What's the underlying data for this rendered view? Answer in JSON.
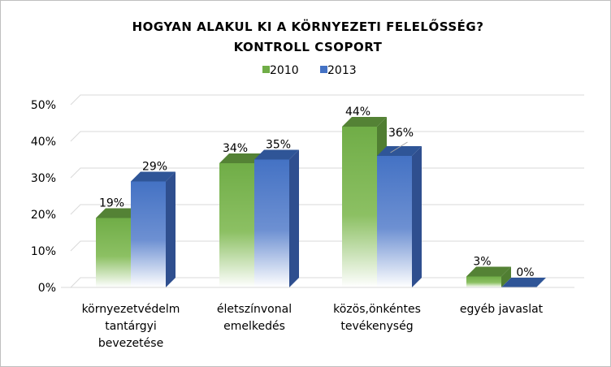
{
  "chart_data": {
    "type": "bar",
    "title_lines": [
      "HOGYAN ALAKUL KI A KÖRNYEZETI FELELŐSSÉG?",
      "KONTROLL CSOPORT"
    ],
    "categories": [
      [
        "környezetvédelm",
        "tantárgyi",
        "bevezetése"
      ],
      [
        "életszínvonal",
        "emelkedés"
      ],
      [
        "közös,önkéntes",
        "tevékenység"
      ],
      [
        "egyéb javaslat"
      ]
    ],
    "series": [
      {
        "name": "2010",
        "values": [
          19,
          34,
          44,
          3
        ],
        "labels": [
          "19%",
          "34%",
          "44%",
          "3%"
        ],
        "color": "#70ad47",
        "top": "#548235",
        "side": "#507e32"
      },
      {
        "name": "2013",
        "values": [
          29,
          35,
          36,
          0
        ],
        "labels": [
          "29%",
          "35%",
          "36%",
          "0%"
        ],
        "color": "#4472c4",
        "top": "#2f5597",
        "side": "#2f4f8f"
      }
    ],
    "y_ticks": [
      "0%",
      "10%",
      "20%",
      "30%",
      "40%",
      "50%"
    ],
    "ylim": [
      0,
      50
    ],
    "legend_position": "top"
  }
}
